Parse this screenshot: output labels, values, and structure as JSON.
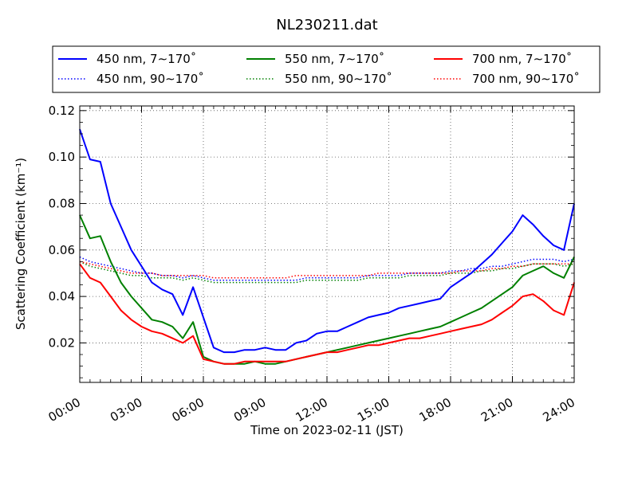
{
  "chart_data": {
    "type": "line",
    "title": "NL230211.dat",
    "xlabel": "Time on 2023-02-11 (JST)",
    "ylabel": "Scattering Coefficient (km⁻¹)",
    "x_unit": "hours",
    "xlim": [
      0,
      24
    ],
    "ylim": [
      0.003,
      0.122
    ],
    "xticks": [
      "00:00",
      "03:00",
      "06:00",
      "09:00",
      "12:00",
      "15:00",
      "18:00",
      "21:00",
      "24:00"
    ],
    "yticks": [
      "0.02",
      "0.04",
      "0.06",
      "0.08",
      "0.10",
      "0.12"
    ],
    "grid": true,
    "legend_position": "top",
    "x": [
      0,
      0.5,
      1,
      1.5,
      2,
      2.5,
      3,
      3.5,
      4,
      4.5,
      5,
      5.5,
      6,
      6.5,
      7,
      7.5,
      8,
      8.5,
      9,
      9.5,
      10,
      10.5,
      11,
      11.5,
      12,
      12.5,
      13,
      13.5,
      14,
      14.5,
      15,
      15.5,
      16,
      16.5,
      17,
      17.5,
      18,
      18.5,
      19,
      19.5,
      20,
      20.5,
      21,
      21.5,
      22,
      22.5,
      23,
      23.5,
      24
    ],
    "series": [
      {
        "name": "450 nm, 7∼170˚",
        "color": "#0000ff",
        "style": "solid",
        "values": [
          0.112,
          0.099,
          0.098,
          0.08,
          0.07,
          0.06,
          0.053,
          0.046,
          0.043,
          0.041,
          0.032,
          0.044,
          0.031,
          0.018,
          0.016,
          0.016,
          0.017,
          0.017,
          0.018,
          0.017,
          0.017,
          0.02,
          0.021,
          0.024,
          0.025,
          0.025,
          0.027,
          0.029,
          0.031,
          0.032,
          0.033,
          0.035,
          0.036,
          0.037,
          0.038,
          0.039,
          0.044,
          0.047,
          0.05,
          0.054,
          0.058,
          0.063,
          0.068,
          0.075,
          0.071,
          0.066,
          0.062,
          0.06,
          0.08
        ]
      },
      {
        "name": "550 nm, 7∼170˚",
        "color": "#008000",
        "style": "solid",
        "values": [
          0.075,
          0.065,
          0.066,
          0.055,
          0.046,
          0.04,
          0.035,
          0.03,
          0.029,
          0.027,
          0.022,
          0.029,
          0.014,
          0.012,
          0.011,
          0.011,
          0.011,
          0.012,
          0.011,
          0.011,
          0.012,
          0.013,
          0.014,
          0.015,
          0.016,
          0.017,
          0.018,
          0.019,
          0.02,
          0.021,
          0.022,
          0.023,
          0.024,
          0.025,
          0.026,
          0.027,
          0.029,
          0.031,
          0.033,
          0.035,
          0.038,
          0.041,
          0.044,
          0.049,
          0.051,
          0.053,
          0.05,
          0.048,
          0.057
        ]
      },
      {
        "name": "700 nm, 7∼170˚",
        "color": "#ff0000",
        "style": "solid",
        "values": [
          0.054,
          0.048,
          0.046,
          0.04,
          0.034,
          0.03,
          0.027,
          0.025,
          0.024,
          0.022,
          0.02,
          0.023,
          0.013,
          0.012,
          0.011,
          0.011,
          0.012,
          0.012,
          0.012,
          0.012,
          0.012,
          0.013,
          0.014,
          0.015,
          0.016,
          0.016,
          0.017,
          0.018,
          0.019,
          0.019,
          0.02,
          0.021,
          0.022,
          0.022,
          0.023,
          0.024,
          0.025,
          0.026,
          0.027,
          0.028,
          0.03,
          0.033,
          0.036,
          0.04,
          0.041,
          0.038,
          0.034,
          0.032,
          0.046
        ]
      },
      {
        "name": "450 nm, 90∼170˚",
        "color": "#0000ff",
        "style": "dotted",
        "values": [
          0.057,
          0.055,
          0.054,
          0.053,
          0.052,
          0.051,
          0.05,
          0.05,
          0.049,
          0.049,
          0.048,
          0.049,
          0.048,
          0.047,
          0.047,
          0.047,
          0.047,
          0.047,
          0.047,
          0.047,
          0.047,
          0.047,
          0.048,
          0.048,
          0.048,
          0.048,
          0.048,
          0.048,
          0.049,
          0.049,
          0.049,
          0.049,
          0.05,
          0.05,
          0.05,
          0.05,
          0.051,
          0.051,
          0.052,
          0.052,
          0.053,
          0.053,
          0.054,
          0.055,
          0.056,
          0.056,
          0.056,
          0.055,
          0.056
        ]
      },
      {
        "name": "550 nm, 90∼170˚",
        "color": "#008000",
        "style": "dotted",
        "values": [
          0.055,
          0.053,
          0.052,
          0.051,
          0.05,
          0.049,
          0.049,
          0.048,
          0.048,
          0.048,
          0.047,
          0.048,
          0.047,
          0.046,
          0.046,
          0.046,
          0.046,
          0.046,
          0.046,
          0.046,
          0.046,
          0.046,
          0.047,
          0.047,
          0.047,
          0.047,
          0.047,
          0.047,
          0.048,
          0.048,
          0.048,
          0.048,
          0.049,
          0.049,
          0.049,
          0.049,
          0.05,
          0.05,
          0.05,
          0.051,
          0.051,
          0.052,
          0.052,
          0.053,
          0.054,
          0.054,
          0.054,
          0.053,
          0.054
        ]
      },
      {
        "name": "700 nm, 90∼170˚",
        "color": "#ff0000",
        "style": "dotted",
        "values": [
          0.055,
          0.054,
          0.053,
          0.052,
          0.051,
          0.05,
          0.05,
          0.05,
          0.049,
          0.049,
          0.049,
          0.049,
          0.049,
          0.048,
          0.048,
          0.048,
          0.048,
          0.048,
          0.048,
          0.048,
          0.048,
          0.049,
          0.049,
          0.049,
          0.049,
          0.049,
          0.049,
          0.049,
          0.049,
          0.05,
          0.05,
          0.05,
          0.05,
          0.05,
          0.05,
          0.05,
          0.05,
          0.051,
          0.051,
          0.051,
          0.052,
          0.052,
          0.053,
          0.053,
          0.054,
          0.054,
          0.054,
          0.054,
          0.054
        ]
      }
    ]
  }
}
